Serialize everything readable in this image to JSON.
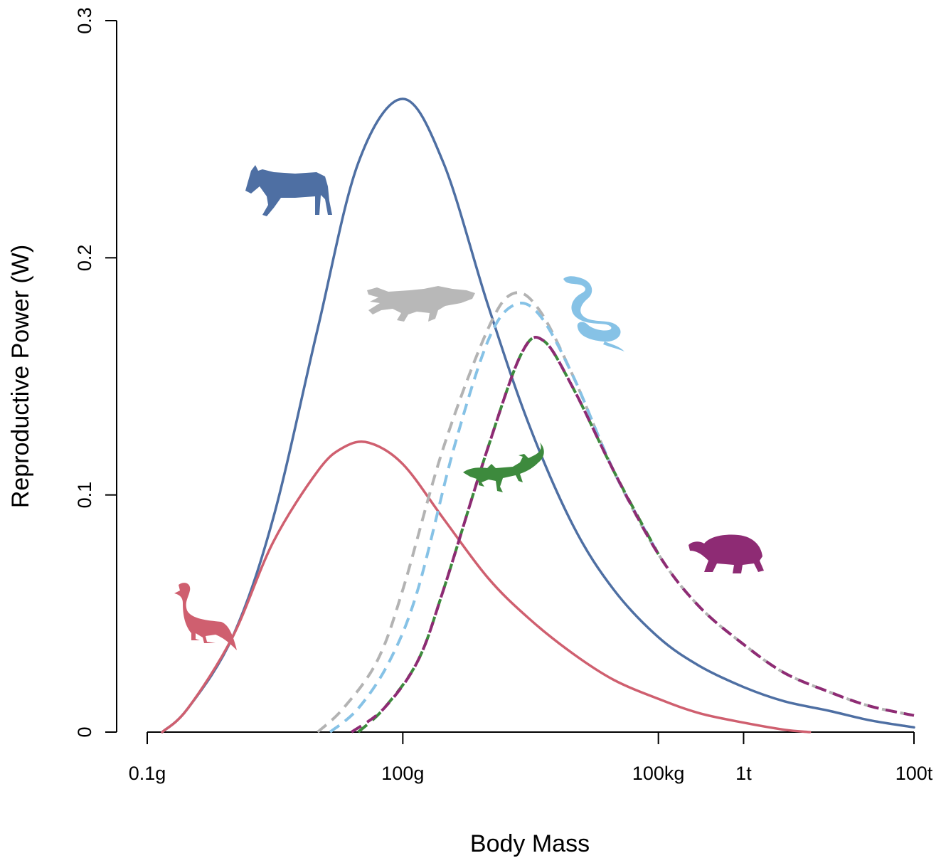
{
  "chart_data": {
    "type": "line",
    "xlabel": "Body Mass",
    "ylabel": "Reproductive Power (W)",
    "x_scale": "log",
    "x_unit": "g",
    "xlim": [
      0.1,
      100000000
    ],
    "ylim": [
      0,
      0.3
    ],
    "x_ticks": [
      {
        "value": 0.1,
        "label": "0.1g"
      },
      {
        "value": 100,
        "label": "100g"
      },
      {
        "value": 100000,
        "label": "100kg"
      },
      {
        "value": 1000000,
        "label": "1t"
      },
      {
        "value": 100000000,
        "label": "100t"
      }
    ],
    "y_ticks": [
      {
        "value": 0,
        "label": "0"
      },
      {
        "value": 0.1,
        "label": "0.1"
      },
      {
        "value": 0.2,
        "label": "0.2"
      },
      {
        "value": 0.3,
        "label": "0.3"
      }
    ],
    "grid": false,
    "legend": "none",
    "series": [
      {
        "icon": "zebra-silhouette-icon",
        "color": "#4e6fa3",
        "style": "solid",
        "points": [
          [
            0.15,
            0.0
          ],
          [
            0.3,
            0.01
          ],
          [
            1,
            0.04
          ],
          [
            3,
            0.09
          ],
          [
            10,
            0.17
          ],
          [
            30,
            0.24
          ],
          [
            100,
            0.267
          ],
          [
            300,
            0.24
          ],
          [
            1000,
            0.18
          ],
          [
            3000,
            0.13
          ],
          [
            10000,
            0.087
          ],
          [
            30000,
            0.06
          ],
          [
            100000,
            0.04
          ],
          [
            300000,
            0.028
          ],
          [
            1000000,
            0.019
          ],
          [
            3000000,
            0.013
          ],
          [
            10000000,
            0.009
          ],
          [
            30000000,
            0.005
          ],
          [
            100000000,
            0.002
          ]
        ]
      },
      {
        "icon": "pigeon-silhouette-icon",
        "color": "#cf5f6f",
        "style": "solid",
        "points": [
          [
            0.15,
            0.0
          ],
          [
            0.3,
            0.01
          ],
          [
            1,
            0.04
          ],
          [
            3,
            0.08
          ],
          [
            10,
            0.11
          ],
          [
            20,
            0.12
          ],
          [
            40,
            0.122
          ],
          [
            100,
            0.113
          ],
          [
            300,
            0.09
          ],
          [
            1000,
            0.065
          ],
          [
            3000,
            0.048
          ],
          [
            10000,
            0.033
          ],
          [
            30000,
            0.022
          ],
          [
            100000,
            0.014
          ],
          [
            300000,
            0.008
          ],
          [
            1000000,
            0.004
          ],
          [
            3000000,
            0.001
          ],
          [
            6000000,
            0.0
          ]
        ]
      },
      {
        "icon": "crocodile-silhouette-icon",
        "color": "#b3b3b3",
        "style": "dashed",
        "points": [
          [
            10,
            0.0
          ],
          [
            20,
            0.01
          ],
          [
            50,
            0.03
          ],
          [
            100,
            0.06
          ],
          [
            300,
            0.12
          ],
          [
            1000,
            0.17
          ],
          [
            2000,
            0.185
          ],
          [
            4000,
            0.178
          ],
          [
            10000,
            0.15
          ],
          [
            30000,
            0.11
          ],
          [
            100000,
            0.075
          ],
          [
            300000,
            0.053
          ],
          [
            1000000,
            0.037
          ],
          [
            3000000,
            0.025
          ],
          [
            10000000,
            0.017
          ],
          [
            30000000,
            0.011
          ],
          [
            100000000,
            0.007
          ]
        ]
      },
      {
        "icon": "snake-silhouette-icon",
        "color": "#86c2e6",
        "style": "dashed",
        "points": [
          [
            14,
            0.0
          ],
          [
            30,
            0.01
          ],
          [
            70,
            0.03
          ],
          [
            150,
            0.06
          ],
          [
            400,
            0.12
          ],
          [
            1000,
            0.165
          ],
          [
            2000,
            0.18
          ],
          [
            4000,
            0.176
          ],
          [
            10000,
            0.15
          ],
          [
            30000,
            0.11
          ],
          [
            100000,
            0.075
          ]
        ]
      },
      {
        "icon": "lizard-silhouette-icon",
        "color": "#3d8a3d",
        "style": "dashed",
        "points": [
          [
            30,
            0.0
          ],
          [
            60,
            0.01
          ],
          [
            150,
            0.03
          ],
          [
            300,
            0.06
          ],
          [
            1000,
            0.12
          ],
          [
            2500,
            0.16
          ],
          [
            4500,
            0.165
          ],
          [
            10000,
            0.145
          ],
          [
            30000,
            0.11
          ],
          [
            100000,
            0.075
          ]
        ]
      },
      {
        "icon": "tortoise-silhouette-icon",
        "color": "#8e2b74",
        "style": "dashed",
        "points": [
          [
            25,
            0.0
          ],
          [
            60,
            0.01
          ],
          [
            150,
            0.03
          ],
          [
            300,
            0.06
          ],
          [
            1000,
            0.12
          ],
          [
            2500,
            0.16
          ],
          [
            4500,
            0.165
          ],
          [
            10000,
            0.145
          ],
          [
            30000,
            0.11
          ],
          [
            100000,
            0.075
          ],
          [
            300000,
            0.053
          ],
          [
            1000000,
            0.037
          ],
          [
            3000000,
            0.025
          ],
          [
            10000000,
            0.017
          ],
          [
            30000000,
            0.011
          ],
          [
            100000000,
            0.007
          ]
        ]
      }
    ]
  }
}
